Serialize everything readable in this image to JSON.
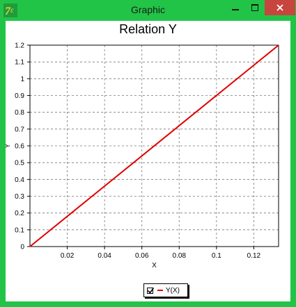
{
  "window": {
    "title": "Graphic"
  },
  "chart_data": {
    "type": "line",
    "title": "Relation Y",
    "xlabel": "X",
    "ylabel": "Y",
    "xlim": [
      0,
      0.1333
    ],
    "ylim": [
      0,
      1.2
    ],
    "grid": true,
    "x_ticks": [
      "0.02",
      "0.04",
      "0.06",
      "0.08",
      "0.1",
      "0.12"
    ],
    "y_ticks": [
      "0",
      "0.1",
      "0.2",
      "0.3",
      "0.4",
      "0.5",
      "0.6",
      "0.7",
      "0.8",
      "0.9",
      "1",
      "1.1",
      "1.2"
    ],
    "legend_position": "bottom-center",
    "series": [
      {
        "name": "Y(X)",
        "color": "#e00000",
        "x": [
          0,
          0.1333
        ],
        "y": [
          0,
          1.2
        ]
      }
    ]
  },
  "legend": {
    "checked": true
  }
}
